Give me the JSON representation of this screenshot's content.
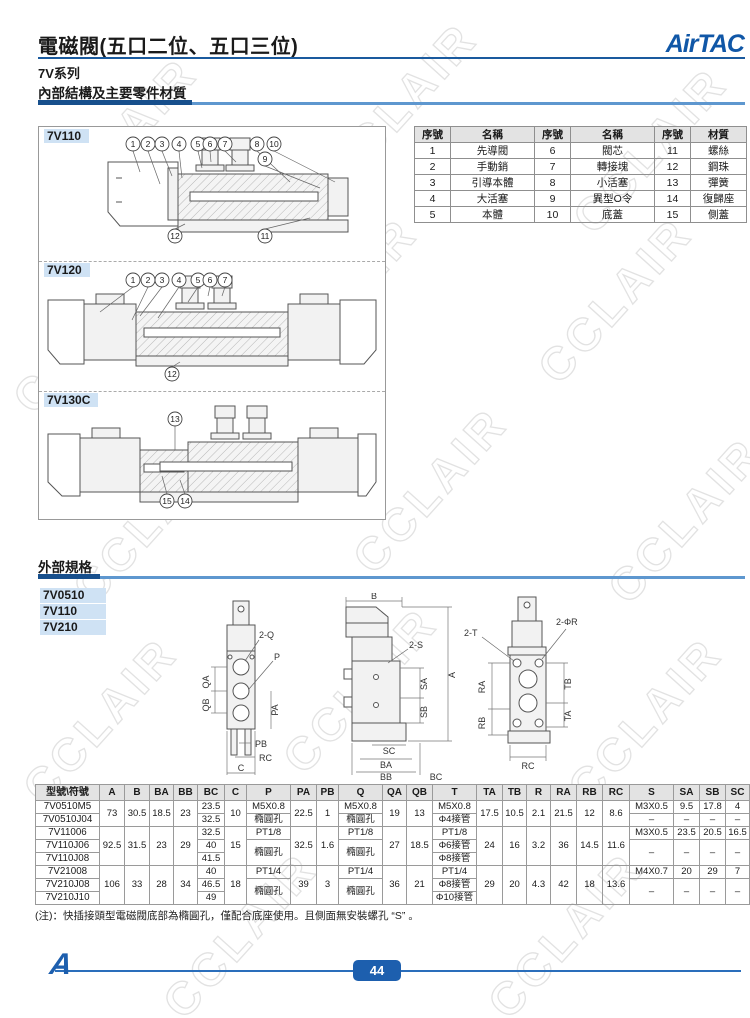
{
  "watermark": "CCLAIR",
  "header": {
    "title": "電磁閥(五口二位、五口三位)",
    "brand": "AirTAC",
    "series": "7V系列"
  },
  "sections": {
    "internal": "內部結構及主要零件材質",
    "external": "外部規格"
  },
  "colors": {
    "accent_dark": "#174f8c",
    "accent_light": "#5e97cf",
    "brand_blue": "#1057a7",
    "label_bg": "#cfe2f4",
    "badge_bg": "#1d5fae"
  },
  "diagrams": [
    {
      "label": "7V110",
      "callouts": [
        "1",
        "2",
        "3",
        "4",
        "5",
        "6",
        "7",
        "8",
        "9",
        "10",
        "11",
        "12"
      ]
    },
    {
      "label": "7V120",
      "callouts": [
        "1",
        "2",
        "3",
        "4",
        "5",
        "6",
        "7",
        "12"
      ]
    },
    {
      "label": "7V130C",
      "callouts": [
        "13",
        "14",
        "15"
      ]
    }
  ],
  "parts_table": {
    "headers": [
      "序號",
      "名稱",
      "序號",
      "名稱",
      "序號",
      "材質"
    ],
    "rows": [
      [
        "1",
        "先導閥",
        "6",
        "閥芯",
        "11",
        "螺絲"
      ],
      [
        "2",
        "手動銷",
        "7",
        "轉接塊",
        "12",
        "鋼珠"
      ],
      [
        "3",
        "引導本體",
        "8",
        "小活塞",
        "13",
        "彈簧"
      ],
      [
        "4",
        "大活塞",
        "9",
        "異型O令",
        "14",
        "復歸座"
      ],
      [
        "5",
        "本體",
        "10",
        "底蓋",
        "15",
        "側蓋"
      ]
    ]
  },
  "models": [
    "7V0510",
    "7V110",
    "7V210"
  ],
  "views": {
    "front": {
      "dims": [
        "2-Q",
        "P",
        "QA",
        "QB",
        "PA",
        "PB",
        "RC",
        "C"
      ]
    },
    "side": {
      "dims": [
        "B",
        "2-S",
        "A",
        "SA",
        "SB",
        "SC",
        "BA",
        "BB",
        "BC"
      ]
    },
    "back": {
      "dims": [
        "2-T",
        "2-ΦR",
        "RA",
        "RB",
        "TB",
        "TA",
        "RC"
      ]
    }
  },
  "dims_table": {
    "headers": [
      "型號\\符號",
      "A",
      "B",
      "BA",
      "BB",
      "BC",
      "C",
      "P",
      "PA",
      "PB",
      "Q",
      "QA",
      "QB",
      "T",
      "TA",
      "TB",
      "R",
      "RA",
      "RB",
      "RC",
      "S",
      "SA",
      "SB",
      "SC"
    ],
    "rows": [
      [
        {
          "t": "7V0510M5"
        },
        {
          "t": "73",
          "rs": 2
        },
        {
          "t": "30.5",
          "rs": 2
        },
        {
          "t": "18.5",
          "rs": 2
        },
        {
          "t": "23",
          "rs": 2
        },
        {
          "t": "23.5"
        },
        {
          "t": "10",
          "rs": 2
        },
        {
          "t": "M5X0.8"
        },
        {
          "t": "22.5",
          "rs": 2
        },
        {
          "t": "1",
          "rs": 2
        },
        {
          "t": "M5X0.8"
        },
        {
          "t": "19",
          "rs": 2
        },
        {
          "t": "13",
          "rs": 2
        },
        {
          "t": "M5X0.8"
        },
        {
          "t": "17.5",
          "rs": 2
        },
        {
          "t": "10.5",
          "rs": 2
        },
        {
          "t": "2.1",
          "rs": 2
        },
        {
          "t": "21.5",
          "rs": 2
        },
        {
          "t": "12",
          "rs": 2
        },
        {
          "t": "8.6",
          "rs": 2
        },
        {
          "t": "M3X0.5"
        },
        {
          "t": "9.5"
        },
        {
          "t": "17.8"
        },
        {
          "t": "4"
        }
      ],
      [
        {
          "t": "7V0510J04"
        },
        {
          "t": "32.5"
        },
        {
          "t": "橢圓孔"
        },
        {
          "t": "橢圓孔"
        },
        {
          "t": "Φ4接管"
        },
        {
          "t": "–"
        },
        {
          "t": "–"
        },
        {
          "t": "–"
        },
        {
          "t": "–"
        }
      ],
      [
        {
          "t": "7V11006"
        },
        {
          "t": "92.5",
          "rs": 3
        },
        {
          "t": "31.5",
          "rs": 3
        },
        {
          "t": "23",
          "rs": 3
        },
        {
          "t": "29",
          "rs": 3
        },
        {
          "t": "32.5"
        },
        {
          "t": "15",
          "rs": 3
        },
        {
          "t": "PT1/8"
        },
        {
          "t": "32.5",
          "rs": 3
        },
        {
          "t": "1.6",
          "rs": 3
        },
        {
          "t": "PT1/8"
        },
        {
          "t": "27",
          "rs": 3
        },
        {
          "t": "18.5",
          "rs": 3
        },
        {
          "t": "PT1/8"
        },
        {
          "t": "24",
          "rs": 3
        },
        {
          "t": "16",
          "rs": 3
        },
        {
          "t": "3.2",
          "rs": 3
        },
        {
          "t": "36",
          "rs": 3
        },
        {
          "t": "14.5",
          "rs": 3
        },
        {
          "t": "11.6",
          "rs": 3
        },
        {
          "t": "M3X0.5"
        },
        {
          "t": "23.5"
        },
        {
          "t": "20.5"
        },
        {
          "t": "16.5"
        }
      ],
      [
        {
          "t": "7V110J06"
        },
        {
          "t": "40"
        },
        {
          "t": "橢圓孔",
          "rs": 2
        },
        {
          "t": "橢圓孔",
          "rs": 2
        },
        {
          "t": "Φ6接管"
        },
        {
          "t": "–",
          "rs": 2
        },
        {
          "t": "–",
          "rs": 2
        },
        {
          "t": "–",
          "rs": 2
        },
        {
          "t": "–",
          "rs": 2
        }
      ],
      [
        {
          "t": "7V110J08"
        },
        {
          "t": "41.5"
        },
        {
          "t": "Φ8接管"
        }
      ],
      [
        {
          "t": "7V21008"
        },
        {
          "t": "106",
          "rs": 3
        },
        {
          "t": "33",
          "rs": 3
        },
        {
          "t": "28",
          "rs": 3
        },
        {
          "t": "34",
          "rs": 3
        },
        {
          "t": "40"
        },
        {
          "t": "18",
          "rs": 3
        },
        {
          "t": "PT1/4"
        },
        {
          "t": "39",
          "rs": 3
        },
        {
          "t": "3",
          "rs": 3
        },
        {
          "t": "PT1/4"
        },
        {
          "t": "36",
          "rs": 3
        },
        {
          "t": "21",
          "rs": 3
        },
        {
          "t": "PT1/4"
        },
        {
          "t": "29",
          "rs": 3
        },
        {
          "t": "20",
          "rs": 3
        },
        {
          "t": "4.3",
          "rs": 3
        },
        {
          "t": "42",
          "rs": 3
        },
        {
          "t": "18",
          "rs": 3
        },
        {
          "t": "13.6",
          "rs": 3
        },
        {
          "t": "M4X0.7"
        },
        {
          "t": "20"
        },
        {
          "t": "29"
        },
        {
          "t": "7"
        }
      ],
      [
        {
          "t": "7V210J08"
        },
        {
          "t": "46.5"
        },
        {
          "t": "橢圓孔",
          "rs": 2
        },
        {
          "t": "橢圓孔",
          "rs": 2
        },
        {
          "t": "Φ8接管"
        },
        {
          "t": "–",
          "rs": 2
        },
        {
          "t": "–",
          "rs": 2
        },
        {
          "t": "–",
          "rs": 2
        },
        {
          "t": "–",
          "rs": 2
        }
      ],
      [
        {
          "t": "7V210J10"
        },
        {
          "t": "49"
        },
        {
          "t": "Φ10接管"
        }
      ]
    ]
  },
  "footnote": "(注)：快插接頭型電磁閥底部為橢圓孔，僅配合底座使用。且側面無安裝螺孔 “S” 。",
  "footer": {
    "page_number": "44"
  }
}
